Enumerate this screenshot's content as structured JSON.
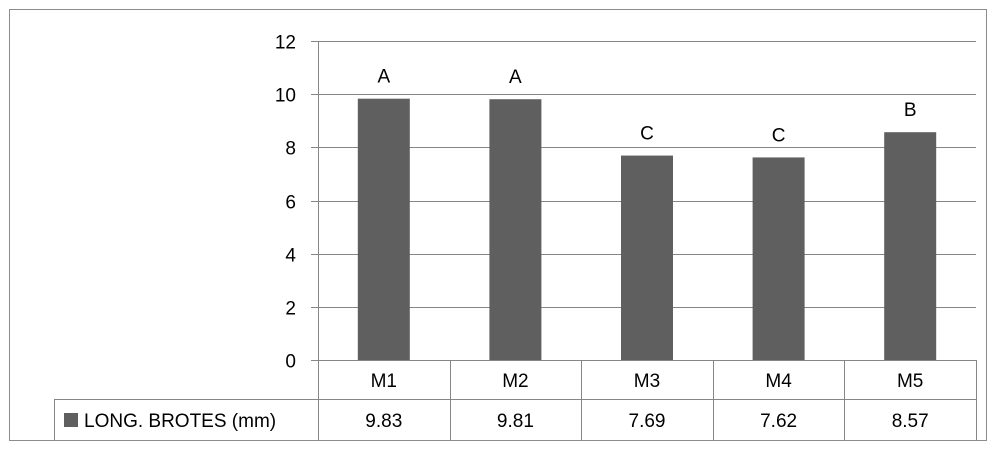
{
  "chart_data": {
    "type": "bar",
    "title": "",
    "xlabel": "",
    "ylabel": "",
    "categories": [
      "M1",
      "M2",
      "M3",
      "M4",
      "M5"
    ],
    "series": [
      {
        "name": "LONG. BROTES (mm)",
        "values": [
          9.83,
          9.81,
          7.69,
          7.62,
          8.57
        ],
        "table_values": [
          "9.83",
          "9.81",
          "7.69",
          "7.62",
          "8.57"
        ],
        "color": "#5f5f5f"
      }
    ],
    "significance_letters": [
      "A",
      "A",
      "C",
      "C",
      "B"
    ],
    "ylim": [
      0,
      12
    ],
    "yticks": [
      0,
      2,
      4,
      6,
      8,
      10,
      12
    ],
    "grid": true,
    "data_table": true,
    "legend": "data-table-left"
  }
}
